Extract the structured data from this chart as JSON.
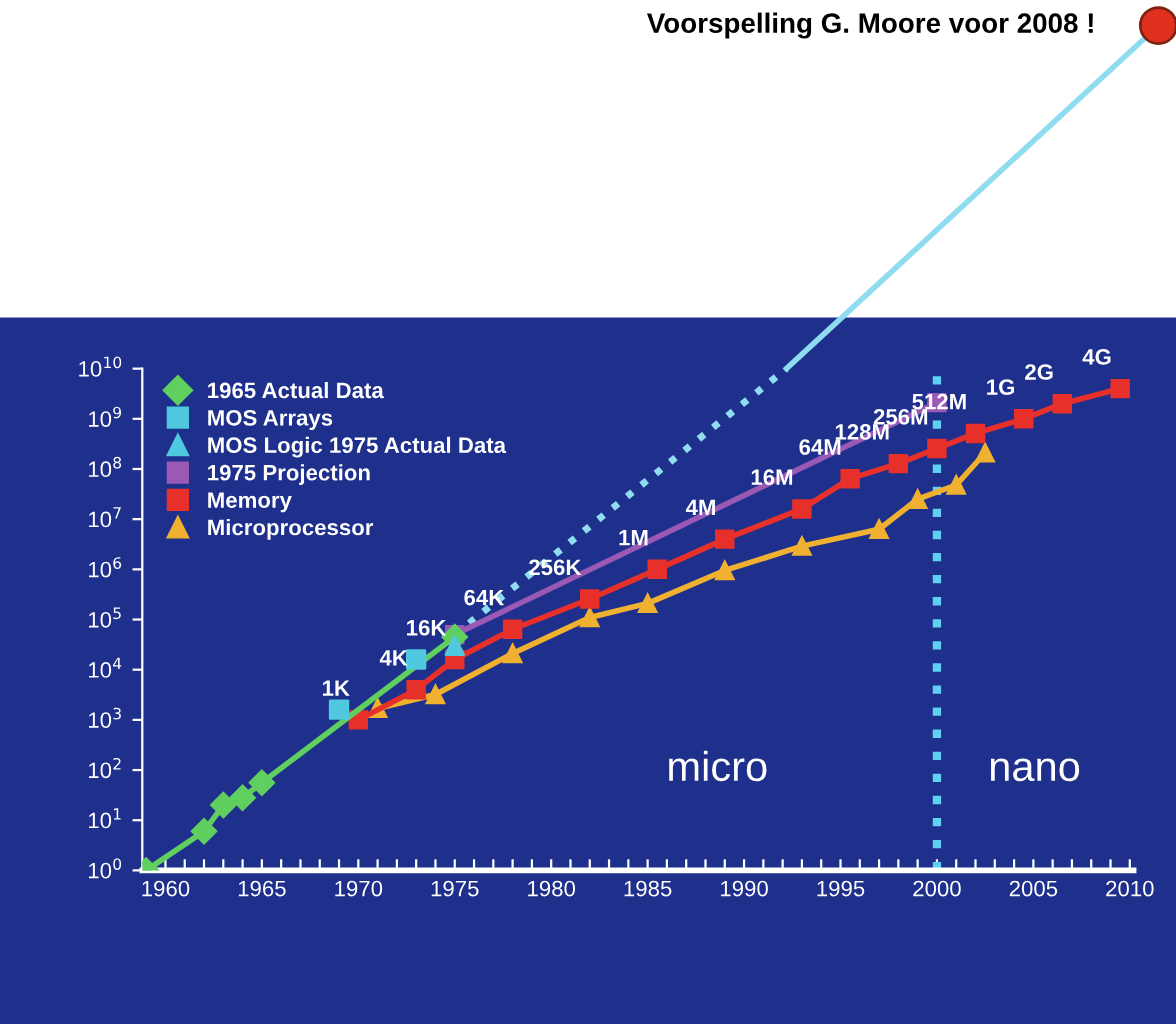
{
  "chart_data": {
    "type": "line",
    "annotations": [
      "Voorspelling G. Moore voor 2008 !",
      "micro",
      "nano",
      {
        "text": "1G",
        "x": 2004.5,
        "y": 1000000000
      },
      {
        "text": "2G",
        "x": 2006.5,
        "y": 2000000000
      },
      {
        "text": "4G",
        "x": 2009.5,
        "y": 4000000000
      }
    ],
    "log": "y",
    "xlim": [
      1958.8,
      2010.2
    ],
    "xticks": [
      1960,
      {
        "value": 1961,
        "label": null
      },
      {
        "value": 1962,
        "label": null
      },
      {
        "value": 1963,
        "label": null
      },
      {
        "value": 1964,
        "label": null
      },
      1965,
      {
        "value": 1966,
        "label": null
      },
      {
        "value": 1967,
        "label": null
      },
      {
        "value": 1968,
        "label": null
      },
      {
        "value": 1969,
        "label": null
      },
      1970,
      {
        "value": 1971,
        "label": null
      },
      {
        "value": 1972,
        "label": null
      },
      {
        "value": 1973,
        "label": null
      },
      {
        "value": 1974,
        "label": null
      },
      1975,
      {
        "value": 1976,
        "label": null
      },
      {
        "value": 1977,
        "label": null
      },
      {
        "value": 1978,
        "label": null
      },
      {
        "value": 1979,
        "label": null
      },
      1980,
      {
        "value": 1981,
        "label": null
      },
      {
        "value": 1982,
        "label": null
      },
      {
        "value": 1983,
        "label": null
      },
      {
        "value": 1984,
        "label": null
      },
      1985,
      {
        "value": 1986,
        "label": null
      },
      {
        "value": 1987,
        "label": null
      },
      {
        "value": 1988,
        "label": null
      },
      {
        "value": 1989,
        "label": null
      },
      1990,
      {
        "value": 1991,
        "label": null
      },
      {
        "value": 1992,
        "label": null
      },
      {
        "value": 1993,
        "label": null
      },
      {
        "value": 1994,
        "label": null
      },
      1995,
      {
        "value": 1996,
        "label": null
      },
      {
        "value": 1997,
        "label": null
      },
      {
        "value": 1998,
        "label": null
      },
      {
        "value": 1999,
        "label": null
      },
      2000,
      {
        "value": 2001,
        "label": null
      },
      {
        "value": 2002,
        "label": null
      },
      {
        "value": 2003,
        "label": null
      },
      {
        "value": 2004,
        "label": null
      },
      2005,
      {
        "value": 2006,
        "label": null
      },
      {
        "value": 2007,
        "label": null
      },
      {
        "value": 2008,
        "label": null
      },
      {
        "value": 2009,
        "label": null
      },
      2010
    ],
    "ylim": [
      1,
      10000000000
    ],
    "yticks": [
      {
        "value": 1,
        "label": "10$^{0}$"
      },
      {
        "value": 10,
        "label": "10$^{1}$"
      },
      {
        "value": 100,
        "label": "10$^{2}$"
      },
      {
        "value": 1000,
        "label": "10$^{3}$"
      },
      {
        "value": 10000,
        "label": "10$^{4}$"
      },
      {
        "value": 100000,
        "label": "10$^{5}$"
      },
      {
        "value": 1000000,
        "label": "10$^{6}$"
      },
      {
        "value": 10000000,
        "label": "10$^{7}$"
      },
      {
        "value": 100000000,
        "label": "10$^{8}$"
      },
      {
        "value": 1000000000,
        "label": "10$^{9}$"
      },
      {
        "value": 10000000000,
        "label": "10$^{10}$"
      }
    ],
    "grid": false,
    "legend": "top left",
    "ref_lines": [
      {
        "axis": "x",
        "value": 2000,
        "color": "#5fd0f0",
        "line_style": "dotted"
      }
    ],
    "series": [
      {
        "name": "1965 Actual Data",
        "color": "#5fcf5f",
        "marker": "diamond",
        "line_style": "solid",
        "x": [
          1959,
          1962,
          1963,
          1964,
          1965,
          1975
        ],
        "values": [
          1,
          6,
          20,
          28,
          56,
          45000
        ]
      },
      {
        "name": "MOS Arrays",
        "type": "scatter",
        "color": "#4fc8e0",
        "marker": "square",
        "x": [
          1969,
          1973
        ],
        "values": [
          1600,
          16000
        ]
      },
      {
        "name": "MOS Logic 1975 Actual Data",
        "type": "scatter",
        "color": "#4fc8e0",
        "marker": "triangle",
        "x": [
          1975
        ],
        "values": [
          30000
        ]
      },
      {
        "name": "1975 Projection",
        "color": "#9b59b6",
        "marker": "square",
        "line_style": "solid",
        "x": [
          1975,
          2000
        ],
        "values": [
          50000,
          2100000000
        ]
      },
      {
        "name": "Memory",
        "color": "#e8302a",
        "marker": "square",
        "line_style": "solid",
        "x": [
          1970,
          1973,
          1975,
          1978,
          1982,
          1985.5,
          1989,
          1993,
          1995.5,
          1998,
          2000,
          2002,
          2004.5,
          2006.5,
          2009.5
        ],
        "values": [
          1000,
          4000,
          16000,
          64000,
          256000,
          1000000,
          4000000,
          16000000,
          64000000,
          128000000,
          256000000,
          512000000,
          1000000000,
          2000000000,
          4000000000
        ],
        "value_labels": [
          "1K",
          "4K",
          "16K",
          "64K",
          "256K",
          "1M",
          "4M",
          "16M",
          "64M",
          "128M",
          "256M",
          "512M",
          null,
          null,
          null
        ]
      },
      {
        "name": "Microprocessor",
        "color": "#f0b030",
        "marker": "triangle",
        "line_style": "solid",
        "x": [
          1971,
          1974,
          1978,
          1982,
          1985,
          1989,
          1993,
          1997,
          1999,
          2001,
          2002.5
        ],
        "values": [
          1700,
          3200,
          21000,
          110000,
          210000,
          950000,
          2900000,
          6300000,
          25000000,
          48000000,
          210000000
        ]
      },
      {
        "color": "#8fdcf0",
        "marker": "none",
        "line_style": "dotted",
        "x": [
          1975,
          1992.2
        ],
        "values": [
          50000,
          10000000000
        ]
      }
    ]
  }
}
